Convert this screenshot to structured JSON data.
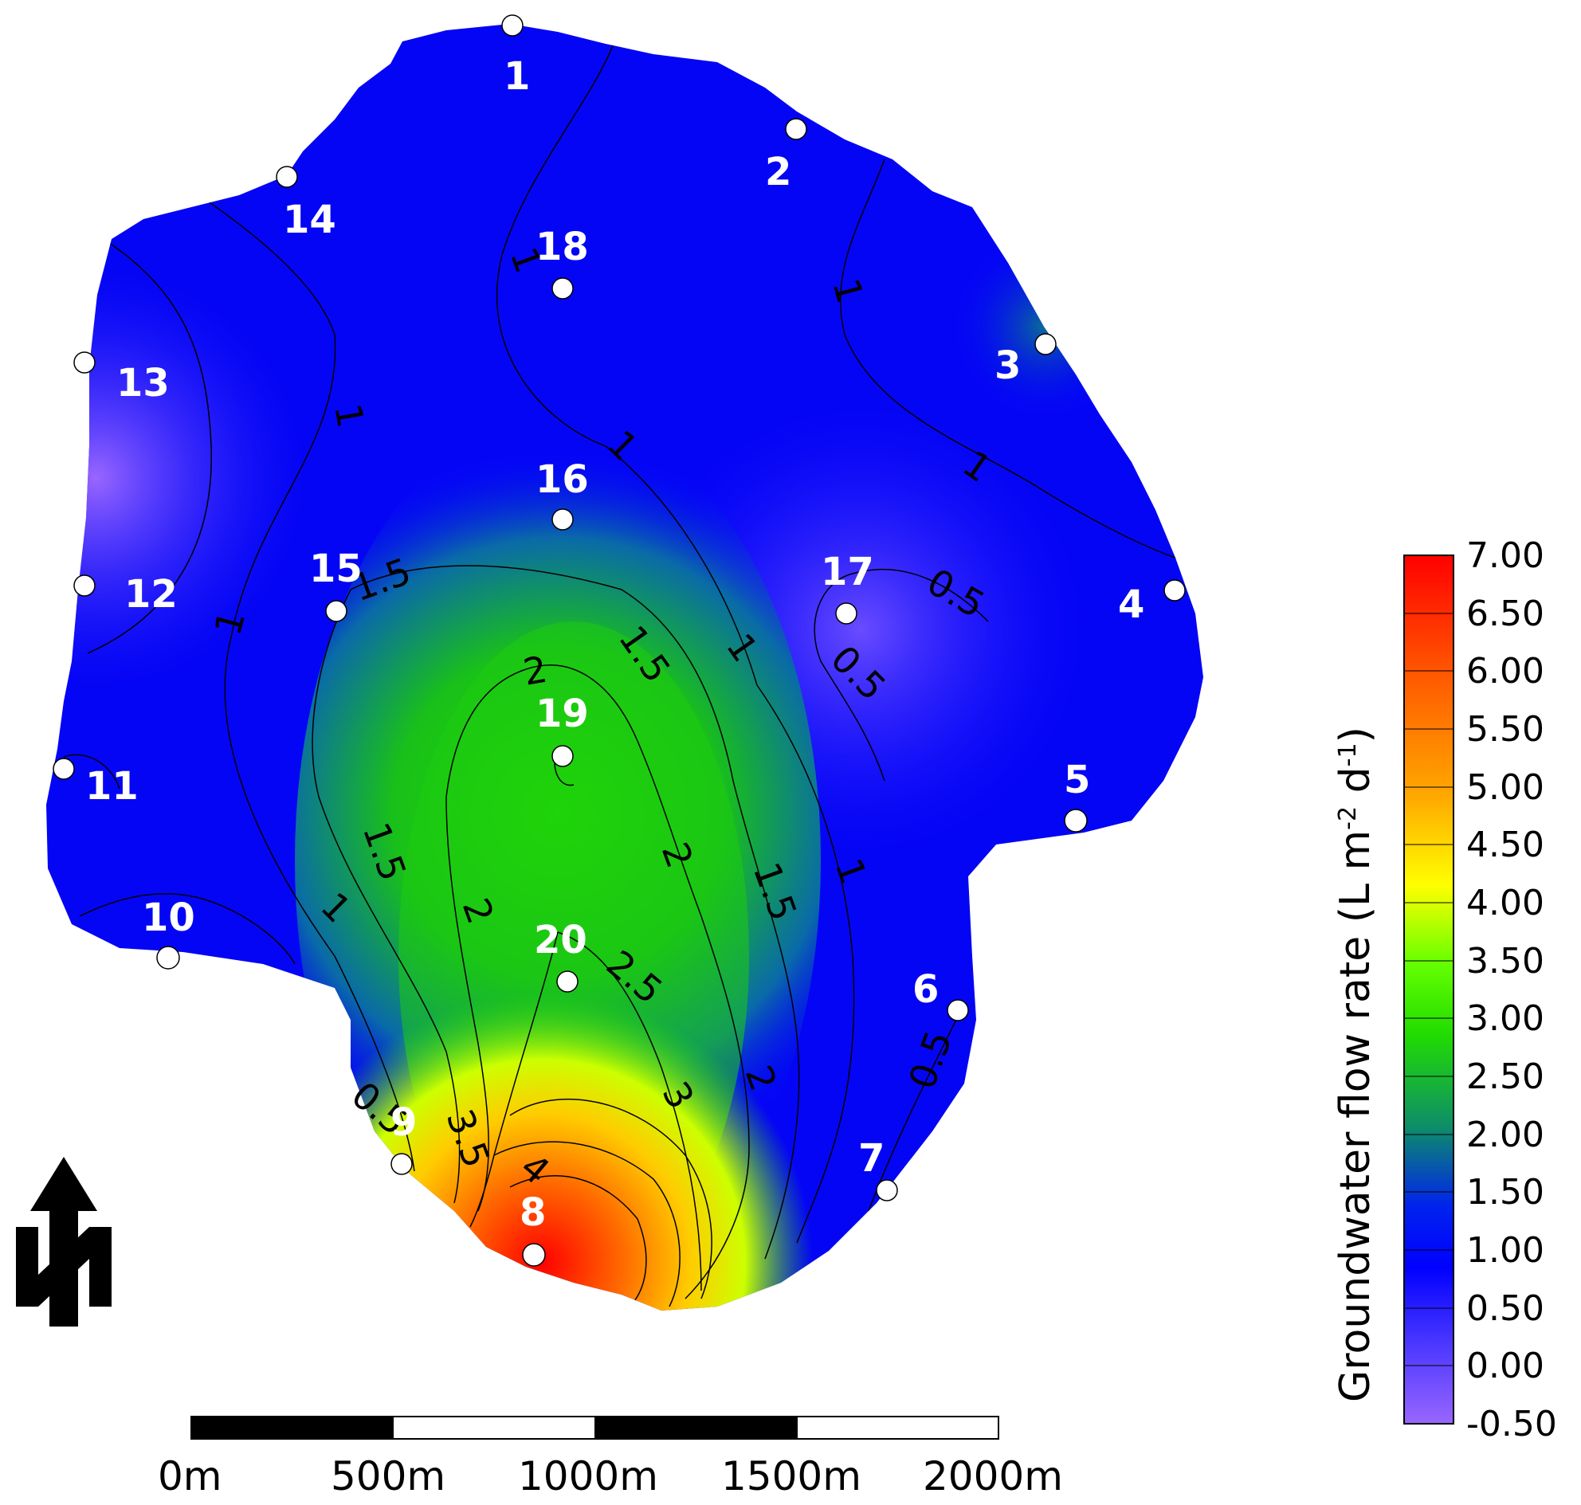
{
  "sites": [
    {
      "id": "1"
    },
    {
      "id": "2"
    },
    {
      "id": "3"
    },
    {
      "id": "4"
    },
    {
      "id": "5"
    },
    {
      "id": "6"
    },
    {
      "id": "7"
    },
    {
      "id": "8"
    },
    {
      "id": "9"
    },
    {
      "id": "10"
    },
    {
      "id": "11"
    },
    {
      "id": "12"
    },
    {
      "id": "13"
    },
    {
      "id": "14"
    },
    {
      "id": "15"
    },
    {
      "id": "16"
    },
    {
      "id": "17"
    },
    {
      "id": "18"
    },
    {
      "id": "19"
    },
    {
      "id": "20"
    }
  ],
  "contour_labels": [
    "1",
    "1",
    "1",
    "1",
    "1",
    "1",
    "1",
    "1",
    "1",
    "1.5",
    "1.5",
    "1.5",
    "1.5",
    "0.5",
    "0.5",
    "0.5",
    "0.5",
    "2",
    "2",
    "2",
    "2",
    "2.5",
    "3",
    "3.5",
    "4"
  ],
  "legend": {
    "title_main": "Groundwater flow rate (L m",
    "title_sup1": "-2",
    "title_mid": " d",
    "title_sup2": "-1",
    "title_end": ")",
    "ticks": [
      "7.00",
      "6.50",
      "6.00",
      "5.50",
      "5.00",
      "4.50",
      "4.00",
      "3.50",
      "3.00",
      "2.50",
      "2.00",
      "1.50",
      "1.00",
      "0.50",
      "0.00",
      "-0.50"
    ],
    "colors": [
      "#ff0000",
      "#ff3300",
      "#ff5500",
      "#ff7700",
      "#ffaa00",
      "#ffd000",
      "#ffff00",
      "#ccff00",
      "#33dd00",
      "#22cc22",
      "#11aa55",
      "#0044dd",
      "#0000ff",
      "#3333ff",
      "#6655ff",
      "#9966ff"
    ]
  },
  "scale_bar": {
    "labels": [
      "0m",
      "500m",
      "1000m",
      "1500m",
      "2000m"
    ]
  },
  "north_arrow": {
    "label": "N",
    "icon": "north-arrow-icon"
  },
  "colors": {
    "low": "#9966ff",
    "mid_low": "#0000ff",
    "mid": "#00cc00",
    "high": "#ffff00",
    "max": "#ff0000"
  }
}
